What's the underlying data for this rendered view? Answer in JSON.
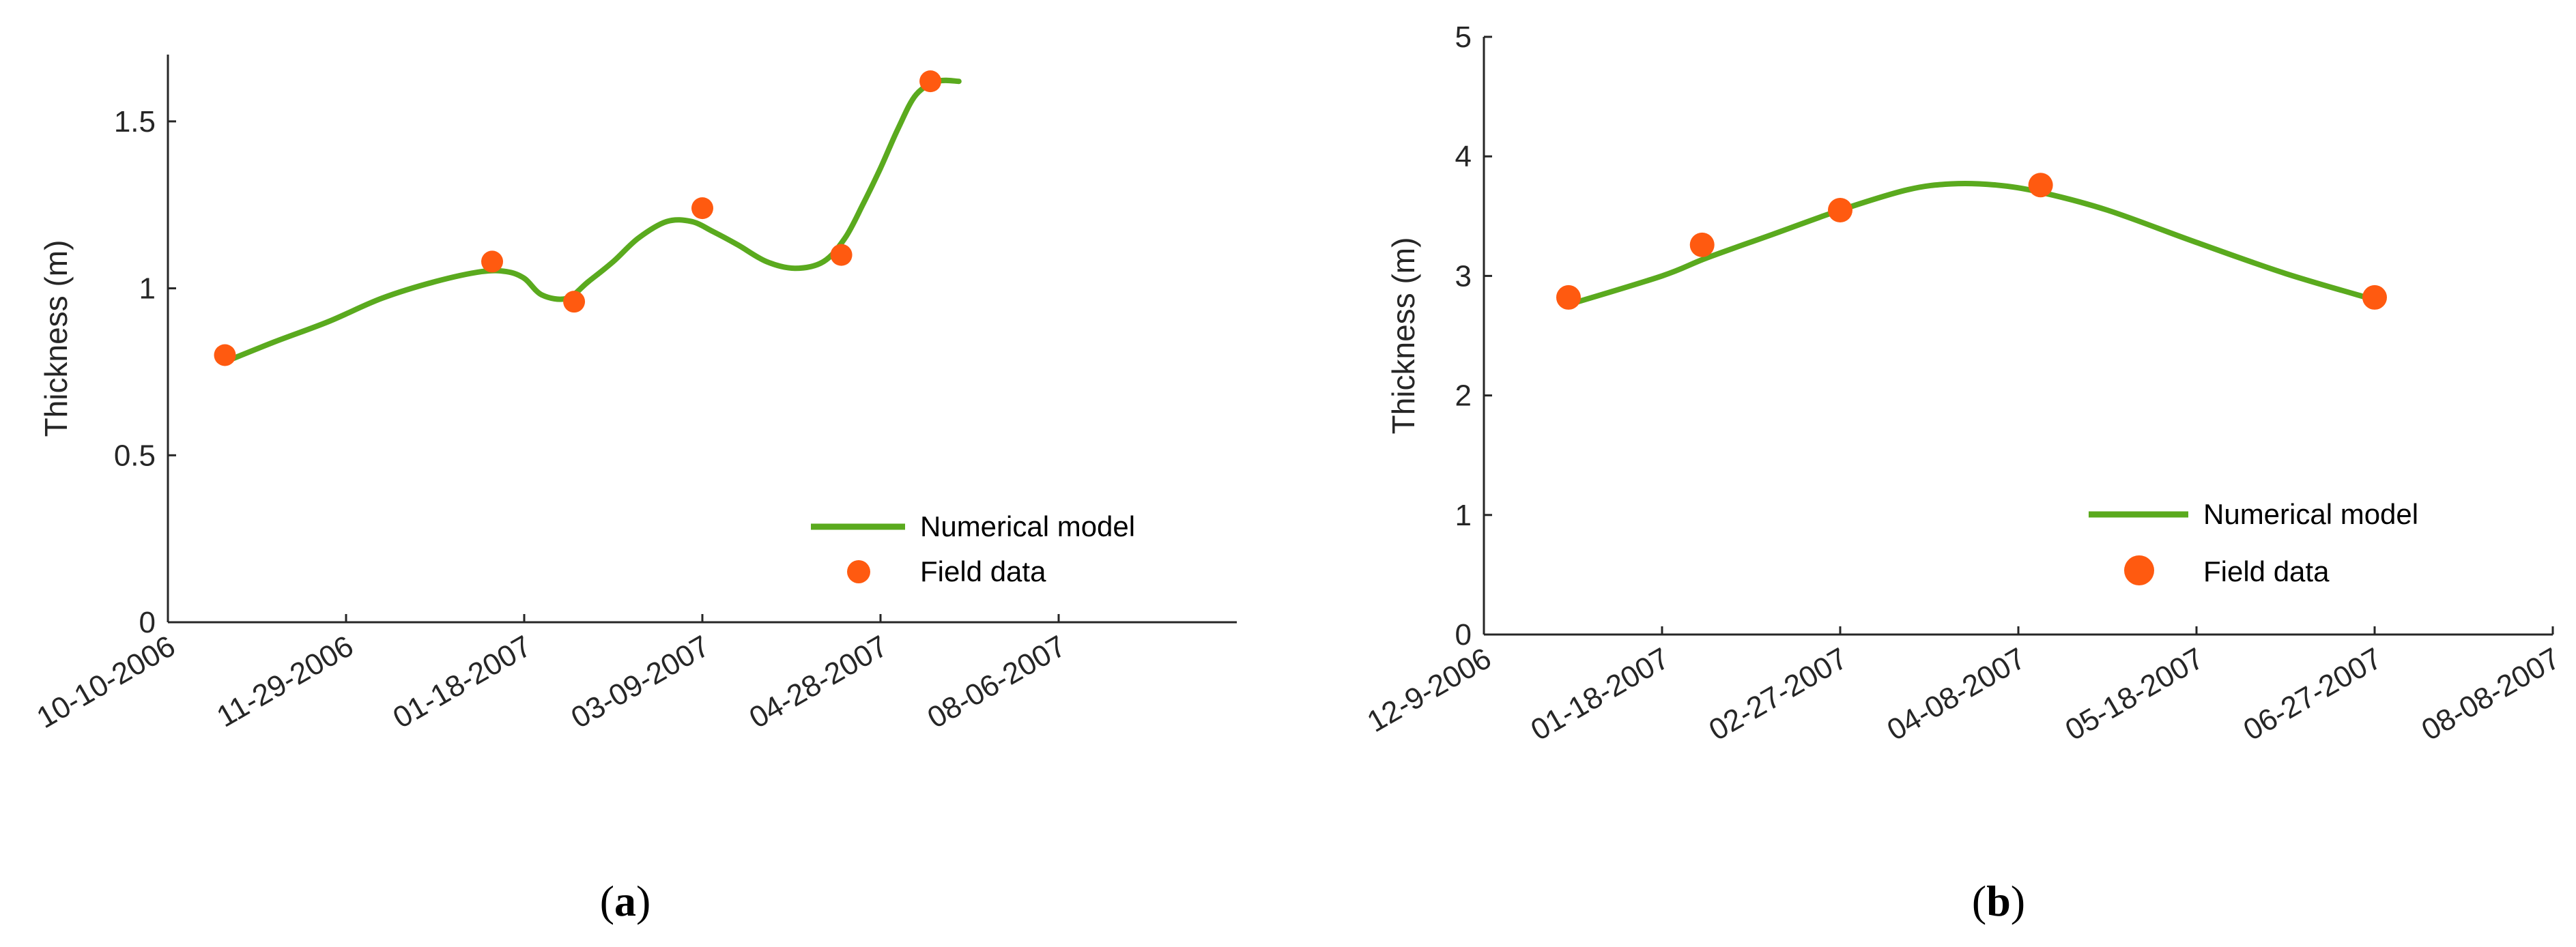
{
  "colors": {
    "model_line": "#5aaa1e",
    "field_points": "#ff5a10",
    "axis": "#262626"
  },
  "chart_data": [
    {
      "type": "line",
      "panel_label": {
        "open": "(",
        "letter": "a",
        "close": ")"
      },
      "ylabel": "Thickness (m)",
      "xlabel": "",
      "ylim": [
        0,
        1.7
      ],
      "yticks": [
        0,
        0.5,
        1,
        1.5
      ],
      "ytick_labels": [
        "0",
        "0.5",
        "1",
        "1.5"
      ],
      "xlim": [
        0,
        300
      ],
      "xticks": [
        0,
        50,
        100,
        150,
        200,
        250
      ],
      "xtick_labels": [
        "10-10-2006",
        "11-29-2006",
        "01-18-2007",
        "03-09-2007",
        "04-28-2007",
        "08-06-2007"
      ],
      "legend_position": "bottom-right",
      "series": [
        {
          "name": "Numerical model",
          "kind": "line",
          "x": [
            16,
            30,
            45,
            60,
            75,
            88,
            95,
            100,
            105,
            112,
            118,
            125,
            132,
            140,
            147,
            153,
            160,
            168,
            176,
            184,
            190,
            195,
            200,
            205,
            210,
            216,
            222
          ],
          "y": [
            0.78,
            0.84,
            0.9,
            0.97,
            1.02,
            1.05,
            1.05,
            1.03,
            0.98,
            0.97,
            1.02,
            1.08,
            1.15,
            1.2,
            1.2,
            1.17,
            1.13,
            1.08,
            1.06,
            1.08,
            1.15,
            1.25,
            1.36,
            1.48,
            1.58,
            1.62,
            1.62
          ]
        },
        {
          "name": "Field data",
          "kind": "scatter",
          "x": [
            16,
            91,
            114,
            150,
            189,
            214
          ],
          "y": [
            0.8,
            1.08,
            0.96,
            1.24,
            1.1,
            1.62
          ]
        }
      ]
    },
    {
      "type": "line",
      "panel_label": {
        "open": "(",
        "letter": "b",
        "close": ")"
      },
      "ylabel": "Thickness (m)",
      "xlabel": "",
      "ylim": [
        0,
        5
      ],
      "yticks": [
        0,
        1,
        2,
        3,
        4,
        5
      ],
      "ytick_labels": [
        "0",
        "1",
        "2",
        "3",
        "4",
        "5"
      ],
      "xlim": [
        0,
        240
      ],
      "xticks": [
        0,
        40,
        80,
        120,
        160,
        200,
        240
      ],
      "xtick_labels": [
        "12-9-2006",
        "01-18-2007",
        "02-27-2007",
        "04-08-2007",
        "05-18-2007",
        "06-27-2007",
        "08-08-2007"
      ],
      "legend_position": "bottom-right",
      "series": [
        {
          "name": "Numerical model",
          "kind": "line",
          "x": [
            19,
            40,
            50,
            65,
            80,
            95,
            105,
            115,
            125,
            140,
            160,
            180,
            200
          ],
          "y": [
            2.76,
            3.0,
            3.15,
            3.35,
            3.55,
            3.72,
            3.77,
            3.76,
            3.7,
            3.55,
            3.28,
            3.02,
            2.8
          ]
        },
        {
          "name": "Field data",
          "kind": "scatter",
          "x": [
            19,
            49,
            80,
            125,
            200
          ],
          "y": [
            2.82,
            3.26,
            3.55,
            3.76,
            2.82
          ]
        }
      ]
    }
  ]
}
